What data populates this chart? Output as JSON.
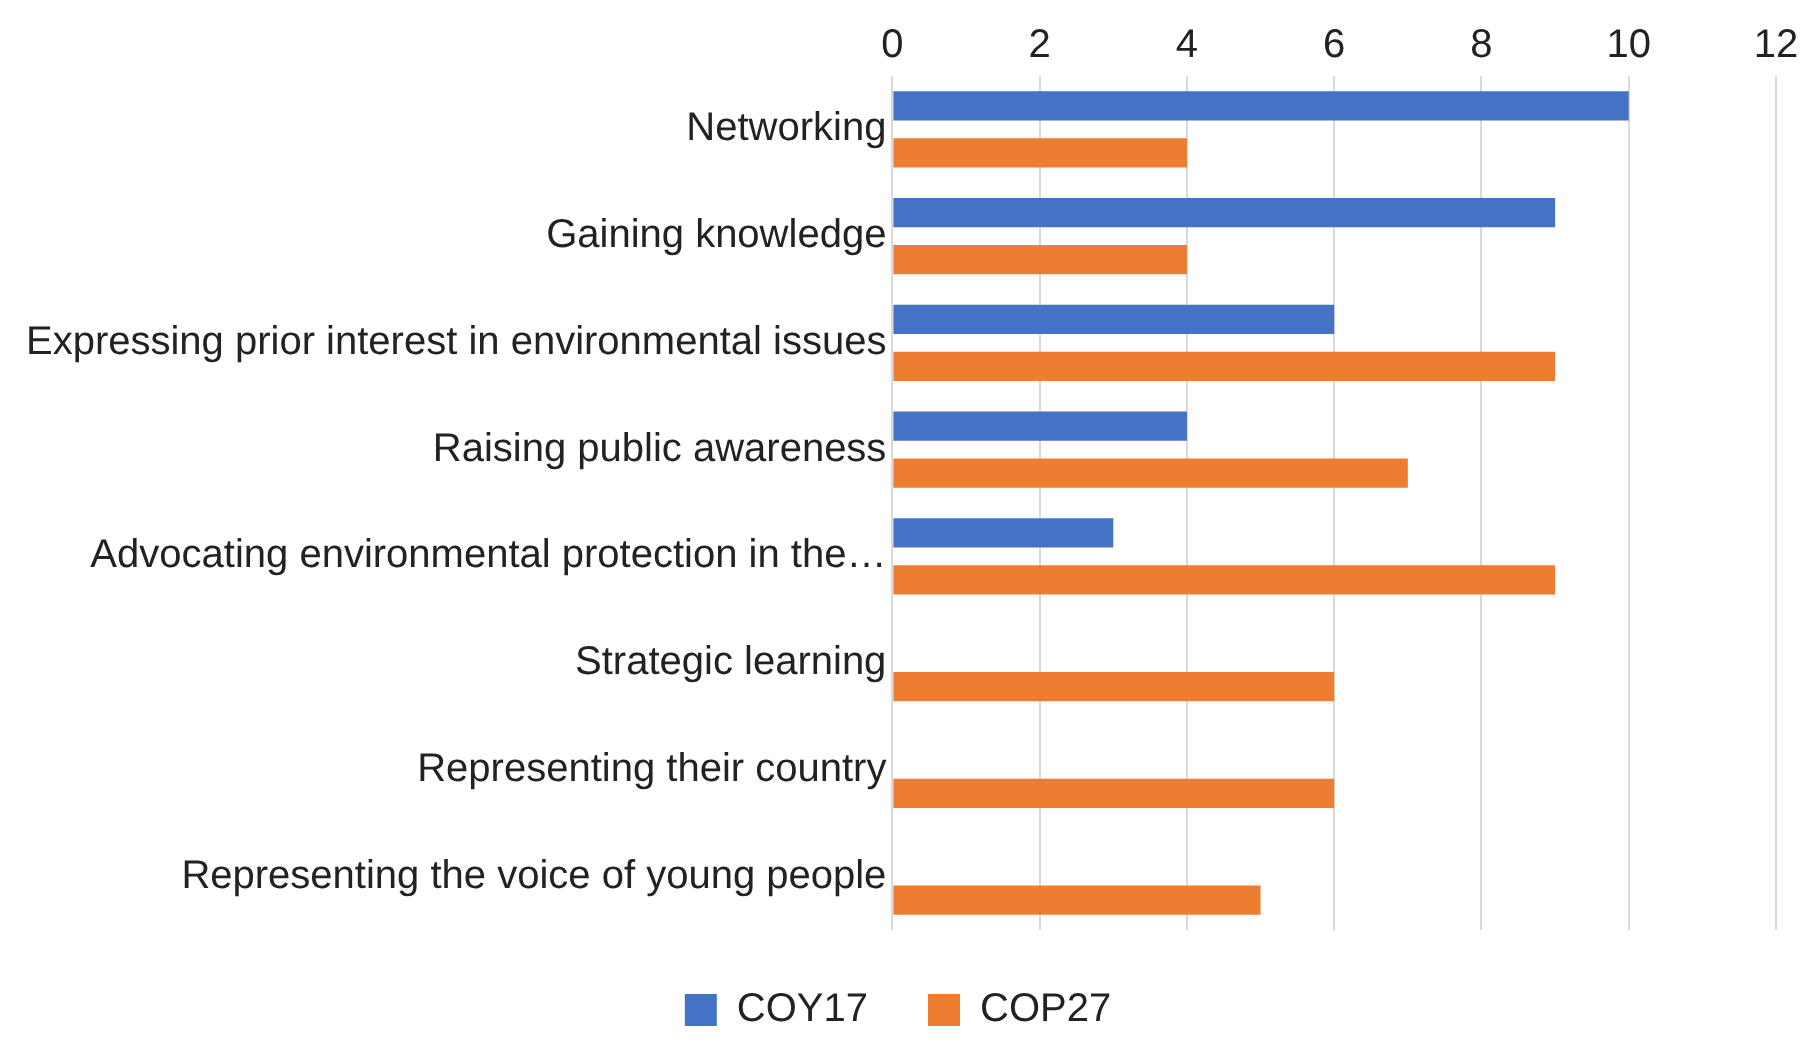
{
  "chart_data": {
    "type": "bar",
    "orientation": "horizontal",
    "categories": [
      "Networking",
      "Gaining knowledge",
      "Expressing prior interest in environmental issues",
      "Raising public awareness",
      "Advocating environmental protection in the…",
      "Strategic learning",
      "Representing their country",
      "Representing the voice of young people"
    ],
    "series": [
      {
        "name": "COY17",
        "color": "#4472c4",
        "values": [
          10,
          9,
          6,
          4,
          3,
          null,
          null,
          null
        ]
      },
      {
        "name": "COP27",
        "color": "#ed7d31",
        "values": [
          4,
          4,
          9,
          7,
          9,
          6,
          6,
          5
        ]
      }
    ],
    "xlim": [
      0,
      12
    ],
    "xticks": [
      0,
      2,
      4,
      6,
      8,
      10,
      12
    ],
    "grid": "x",
    "legend": "bottom"
  }
}
